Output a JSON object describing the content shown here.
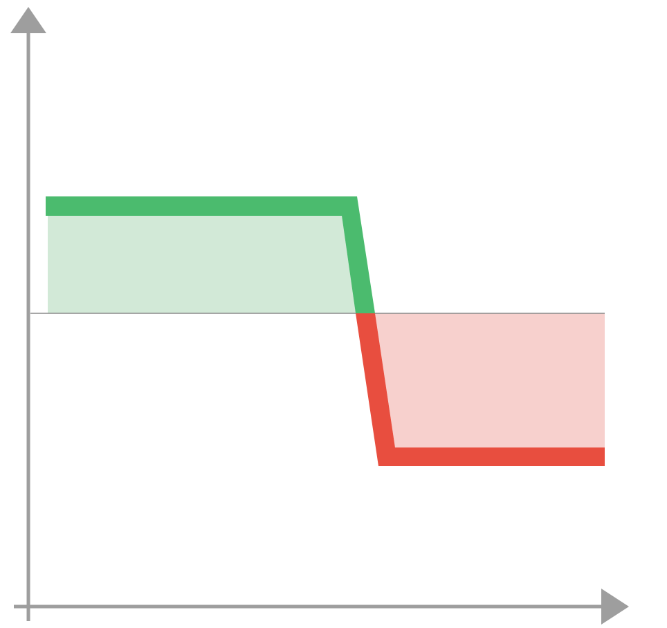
{
  "colors": {
    "axis": "#9e9e9e",
    "baseline": "#8a8a8a",
    "positive_line": "#4bbb6e",
    "positive_fill": "#d2e9d7",
    "negative_line": "#e84e3f",
    "negative_fill": "#f7d0cd",
    "background": "#ffffff"
  },
  "diagram": {
    "description_free": true,
    "segments": [
      {
        "name": "positive-region",
        "sign": "positive"
      },
      {
        "name": "negative-region",
        "sign": "negative"
      }
    ]
  }
}
